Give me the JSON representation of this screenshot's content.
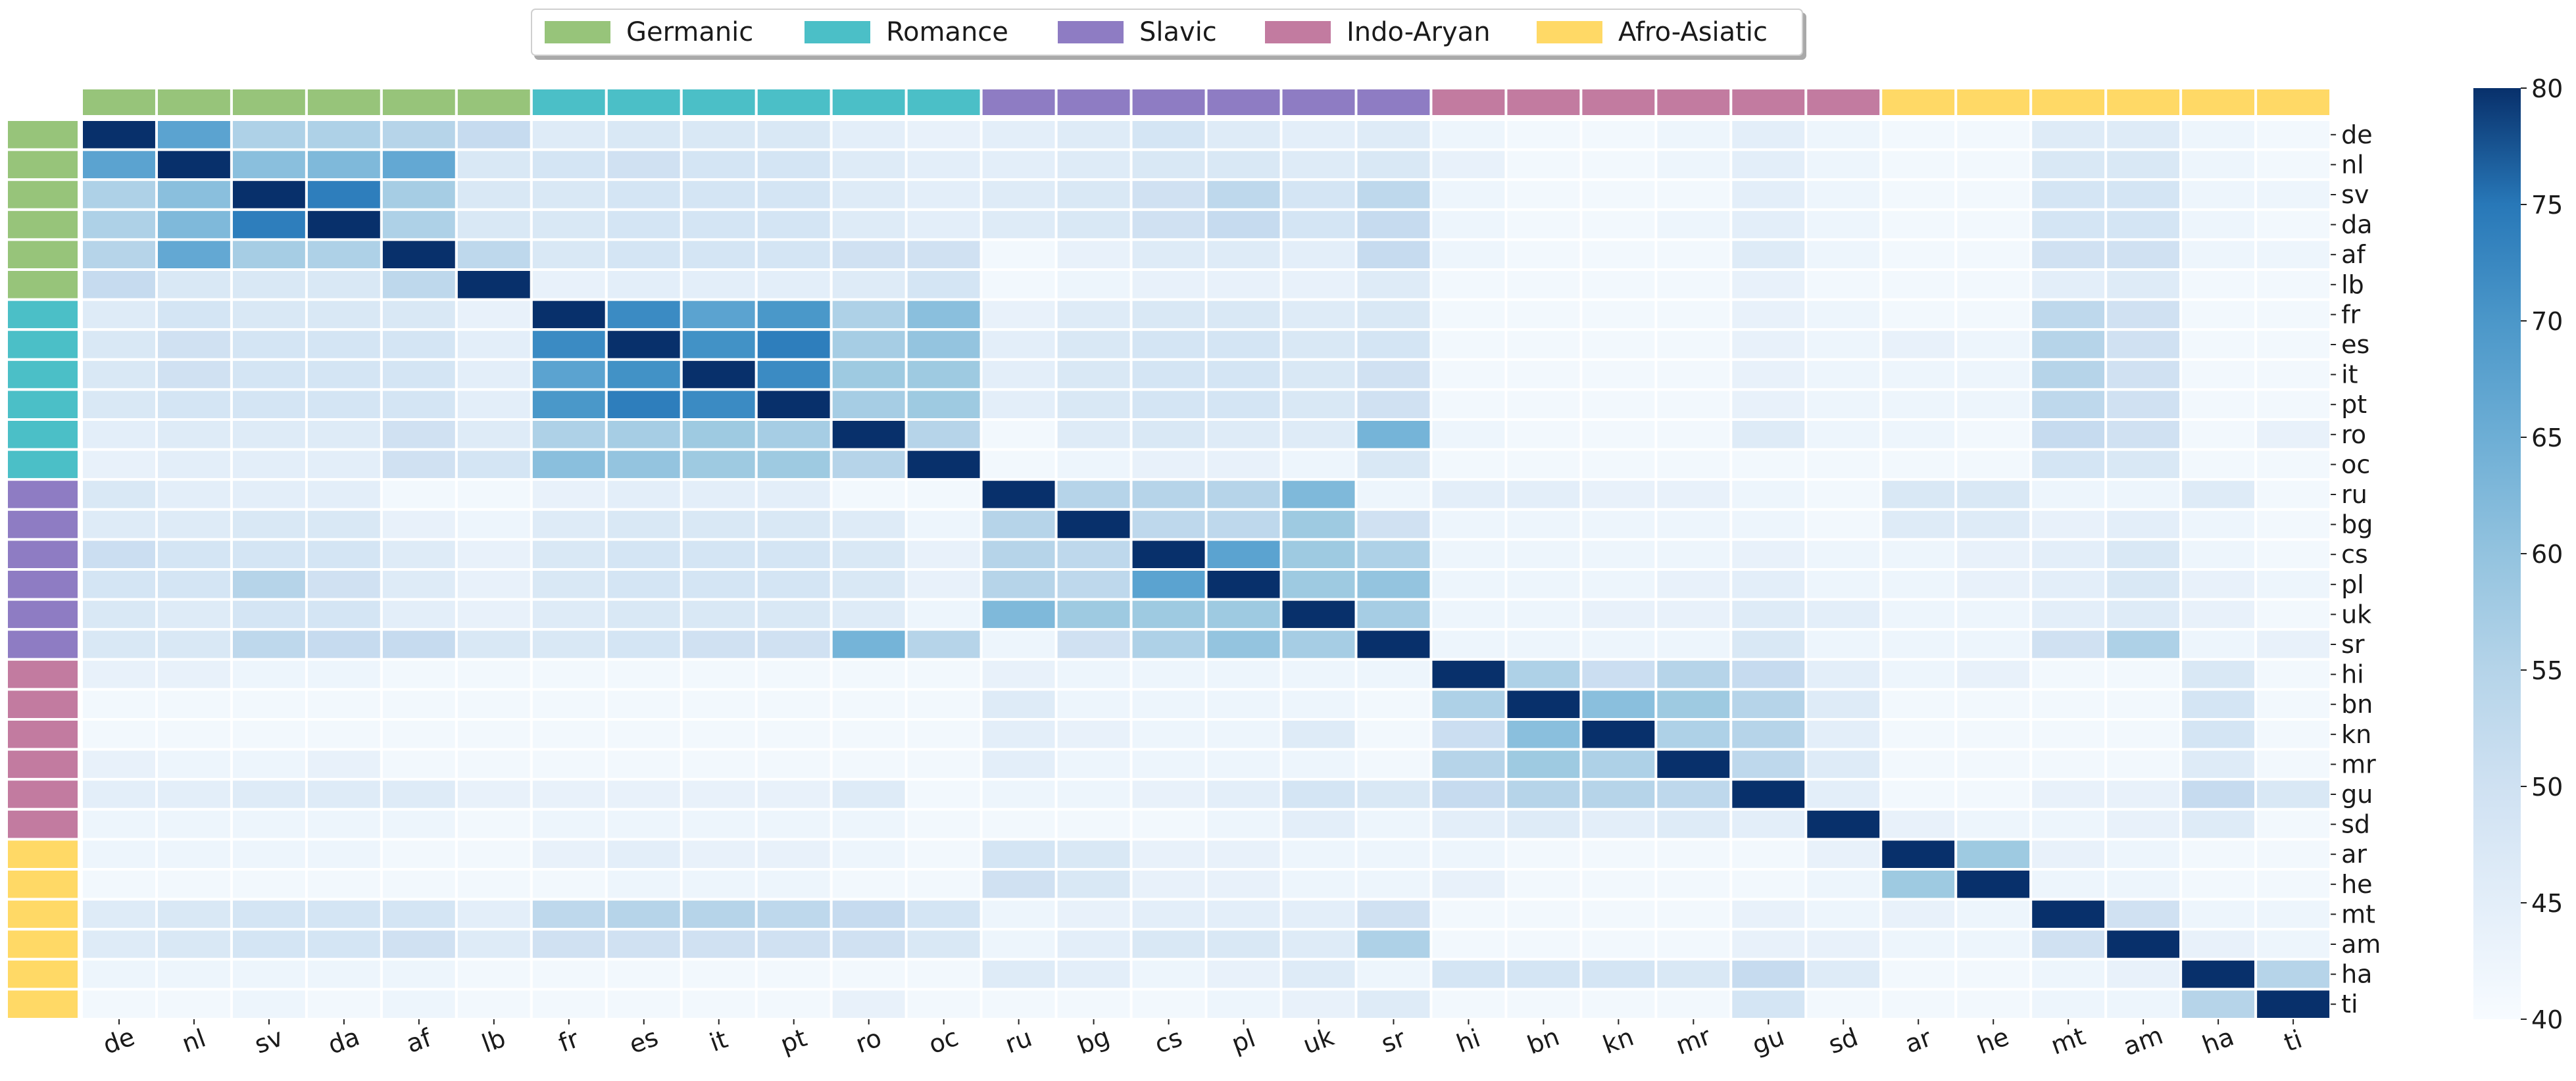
{
  "chart_data": {
    "type": "heatmap",
    "title": "",
    "xlabel": "",
    "ylabel": "",
    "languages": [
      "de",
      "nl",
      "sv",
      "da",
      "af",
      "lb",
      "fr",
      "es",
      "it",
      "pt",
      "ro",
      "oc",
      "ru",
      "bg",
      "cs",
      "pl",
      "uk",
      "sr",
      "hi",
      "bn",
      "kn",
      "mr",
      "gu",
      "sd",
      "ar",
      "he",
      "mt",
      "am",
      "ha",
      "ti"
    ],
    "families": [
      {
        "name": "Germanic",
        "color": "#97c47a",
        "count": 6
      },
      {
        "name": "Romance",
        "color": "#4bbfc7",
        "count": 6
      },
      {
        "name": "Slavic",
        "color": "#8e7cc3",
        "count": 6
      },
      {
        "name": "Indo-Aryan",
        "color": "#c27ba0",
        "count": 6
      },
      {
        "name": "Afro-Asiatic",
        "color": "#ffd966",
        "count": 6
      }
    ],
    "legend_position": "top-center",
    "colorscale": {
      "name": "Blues",
      "min": 40,
      "max": 80,
      "ticks": [
        "40",
        "45",
        "50",
        "55",
        "60",
        "65",
        "70",
        "75",
        "80"
      ]
    },
    "values": [
      [
        80,
        62,
        53,
        53,
        52,
        50,
        45,
        46,
        46,
        46,
        44,
        43,
        44,
        45,
        47,
        45,
        44,
        45,
        42,
        41,
        41,
        42,
        44,
        42,
        41,
        41,
        45,
        45,
        42,
        41
      ],
      [
        62,
        80,
        57,
        58,
        61,
        46,
        47,
        48,
        47,
        47,
        45,
        44,
        44,
        45,
        46,
        46,
        45,
        46,
        43,
        41,
        41,
        42,
        44,
        42,
        41,
        41,
        46,
        46,
        42,
        41
      ],
      [
        53,
        57,
        80,
        68,
        54,
        46,
        46,
        47,
        47,
        47,
        45,
        44,
        45,
        46,
        48,
        51,
        47,
        51,
        42,
        41,
        41,
        41,
        44,
        42,
        41,
        41,
        47,
        47,
        42,
        42
      ],
      [
        53,
        58,
        68,
        80,
        53,
        46,
        46,
        47,
        47,
        47,
        45,
        44,
        45,
        46,
        48,
        50,
        47,
        50,
        42,
        41,
        41,
        42,
        44,
        42,
        41,
        41,
        47,
        47,
        42,
        41
      ],
      [
        52,
        61,
        54,
        53,
        80,
        51,
        46,
        47,
        47,
        47,
        48,
        48,
        41,
        43,
        45,
        45,
        44,
        50,
        42,
        41,
        41,
        41,
        45,
        42,
        41,
        41,
        48,
        48,
        42,
        42
      ],
      [
        50,
        46,
        46,
        46,
        51,
        80,
        43,
        44,
        44,
        44,
        45,
        47,
        41,
        42,
        43,
        43,
        43,
        45,
        41,
        41,
        41,
        41,
        43,
        41,
        41,
        41,
        44,
        45,
        41,
        41
      ],
      [
        45,
        47,
        46,
        46,
        46,
        43,
        80,
        66,
        62,
        64,
        53,
        57,
        43,
        45,
        46,
        46,
        45,
        46,
        41,
        41,
        41,
        41,
        43,
        42,
        41,
        41,
        51,
        48,
        41,
        41
      ],
      [
        46,
        48,
        47,
        47,
        47,
        44,
        66,
        80,
        65,
        68,
        54,
        56,
        44,
        46,
        47,
        47,
        46,
        47,
        41,
        41,
        41,
        41,
        43,
        42,
        43,
        42,
        52,
        48,
        41,
        41
      ],
      [
        46,
        48,
        47,
        47,
        47,
        44,
        62,
        65,
        80,
        66,
        55,
        55,
        44,
        46,
        47,
        47,
        46,
        48,
        41,
        41,
        41,
        41,
        43,
        42,
        42,
        42,
        52,
        48,
        41,
        41
      ],
      [
        46,
        47,
        47,
        47,
        47,
        44,
        64,
        68,
        66,
        80,
        54,
        55,
        44,
        46,
        47,
        47,
        46,
        48,
        41,
        41,
        41,
        41,
        43,
        42,
        42,
        42,
        51,
        48,
        41,
        41
      ],
      [
        44,
        45,
        45,
        45,
        48,
        45,
        53,
        54,
        55,
        54,
        80,
        52,
        41,
        45,
        46,
        45,
        45,
        59,
        42,
        41,
        41,
        41,
        45,
        42,
        42,
        41,
        50,
        48,
        41,
        43
      ],
      [
        43,
        44,
        44,
        44,
        48,
        47,
        57,
        56,
        55,
        55,
        52,
        80,
        41,
        42,
        43,
        43,
        42,
        46,
        41,
        41,
        41,
        41,
        41,
        41,
        41,
        41,
        47,
        46,
        41,
        41
      ],
      [
        46,
        44,
        44,
        44,
        41,
        41,
        43,
        44,
        44,
        44,
        41,
        41,
        80,
        52,
        52,
        52,
        58,
        42,
        44,
        44,
        43,
        43,
        42,
        41,
        46,
        46,
        42,
        42,
        45,
        41
      ],
      [
        45,
        45,
        46,
        46,
        43,
        42,
        45,
        46,
        46,
        46,
        45,
        42,
        52,
        80,
        51,
        51,
        55,
        48,
        42,
        42,
        42,
        42,
        42,
        41,
        45,
        45,
        43,
        44,
        42,
        41
      ],
      [
        49,
        47,
        47,
        47,
        45,
        43,
        46,
        47,
        47,
        47,
        46,
        43,
        52,
        51,
        80,
        62,
        55,
        53,
        42,
        42,
        42,
        42,
        43,
        42,
        42,
        43,
        44,
        46,
        42,
        41
      ],
      [
        47,
        47,
        52,
        48,
        45,
        43,
        46,
        47,
        47,
        47,
        46,
        43,
        52,
        51,
        62,
        80,
        55,
        56,
        42,
        42,
        42,
        43,
        44,
        42,
        42,
        43,
        44,
        46,
        43,
        42
      ],
      [
        46,
        45,
        47,
        47,
        44,
        43,
        45,
        46,
        46,
        46,
        45,
        42,
        58,
        55,
        55,
        55,
        80,
        54,
        42,
        42,
        43,
        43,
        45,
        44,
        42,
        42,
        44,
        45,
        43,
        41
      ],
      [
        46,
        46,
        51,
        50,
        50,
        46,
        46,
        47,
        48,
        48,
        59,
        52,
        42,
        48,
        53,
        56,
        54,
        80,
        42,
        42,
        42,
        42,
        46,
        42,
        42,
        42,
        48,
        53,
        42,
        43
      ],
      [
        43,
        43,
        42,
        42,
        41,
        41,
        41,
        41,
        41,
        41,
        41,
        41,
        43,
        42,
        42,
        42,
        42,
        42,
        80,
        53,
        49,
        52,
        50,
        44,
        42,
        43,
        41,
        41,
        46,
        41
      ],
      [
        41,
        41,
        41,
        41,
        41,
        41,
        41,
        41,
        41,
        41,
        41,
        41,
        45,
        42,
        42,
        42,
        42,
        41,
        53,
        80,
        57,
        55,
        52,
        45,
        41,
        41,
        41,
        41,
        47,
        41
      ],
      [
        41,
        41,
        41,
        41,
        41,
        41,
        41,
        41,
        41,
        41,
        41,
        41,
        44,
        43,
        42,
        42,
        45,
        41,
        49,
        57,
        80,
        53,
        52,
        44,
        41,
        41,
        41,
        41,
        47,
        41
      ],
      [
        43,
        42,
        42,
        43,
        41,
        41,
        41,
        41,
        41,
        41,
        41,
        41,
        44,
        42,
        42,
        42,
        42,
        41,
        52,
        55,
        53,
        80,
        51,
        45,
        41,
        41,
        41,
        41,
        45,
        41
      ],
      [
        44,
        44,
        45,
        45,
        45,
        43,
        43,
        43,
        43,
        43,
        45,
        41,
        42,
        42,
        43,
        44,
        47,
        46,
        50,
        52,
        52,
        51,
        80,
        44,
        41,
        41,
        43,
        43,
        50,
        46
      ],
      [
        42,
        42,
        42,
        42,
        42,
        41,
        42,
        42,
        42,
        42,
        42,
        41,
        41,
        41,
        41,
        42,
        44,
        42,
        44,
        45,
        44,
        45,
        44,
        80,
        43,
        42,
        42,
        43,
        45,
        41
      ],
      [
        42,
        42,
        42,
        42,
        41,
        41,
        43,
        44,
        43,
        43,
        42,
        41,
        47,
        46,
        43,
        43,
        42,
        42,
        42,
        41,
        41,
        41,
        41,
        43,
        80,
        55,
        43,
        42,
        41,
        41
      ],
      [
        41,
        41,
        41,
        41,
        41,
        41,
        41,
        42,
        42,
        42,
        41,
        41,
        48,
        46,
        43,
        43,
        42,
        42,
        43,
        41,
        41,
        41,
        41,
        42,
        55,
        80,
        42,
        42,
        41,
        41
      ],
      [
        45,
        46,
        47,
        47,
        47,
        44,
        51,
        52,
        52,
        51,
        50,
        47,
        42,
        43,
        44,
        44,
        44,
        48,
        41,
        41,
        41,
        41,
        43,
        42,
        43,
        42,
        80,
        48,
        42,
        42
      ],
      [
        45,
        46,
        47,
        47,
        48,
        45,
        48,
        48,
        48,
        48,
        48,
        46,
        42,
        44,
        46,
        46,
        45,
        53,
        41,
        41,
        41,
        41,
        43,
        43,
        42,
        42,
        48,
        80,
        43,
        42
      ],
      [
        42,
        42,
        42,
        42,
        42,
        41,
        41,
        41,
        41,
        41,
        41,
        41,
        45,
        44,
        42,
        43,
        45,
        42,
        47,
        47,
        47,
        46,
        50,
        45,
        41,
        41,
        42,
        43,
        80,
        52
      ],
      [
        41,
        41,
        42,
        41,
        42,
        41,
        41,
        41,
        41,
        41,
        43,
        41,
        41,
        41,
        41,
        42,
        43,
        45,
        41,
        41,
        41,
        41,
        47,
        41,
        41,
        41,
        42,
        42,
        52,
        80
      ]
    ]
  }
}
